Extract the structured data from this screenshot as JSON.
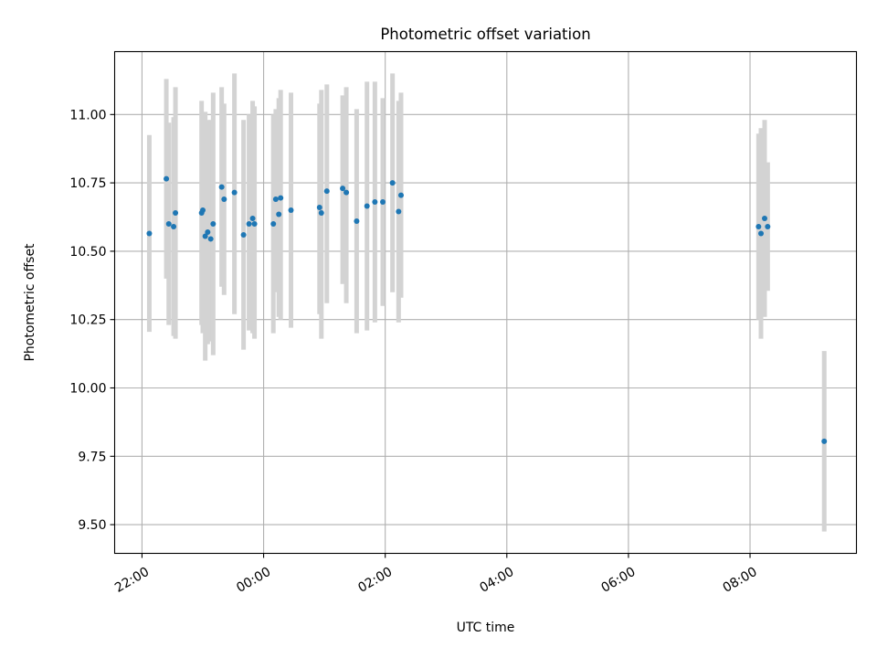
{
  "chart_data": {
    "type": "scatter",
    "title": "Photometric offset variation",
    "xlabel": "UTC time",
    "ylabel": "Photometric offset",
    "x_unit": "hours since 22:00 UTC on the first night",
    "xlim": [
      -0.45,
      11.75
    ],
    "ylim": [
      9.395,
      11.23
    ],
    "x_ticks": [
      {
        "value": 0,
        "label": "22:00"
      },
      {
        "value": 2,
        "label": "00:00"
      },
      {
        "value": 4,
        "label": "02:00"
      },
      {
        "value": 6,
        "label": "04:00"
      },
      {
        "value": 8,
        "label": "06:00"
      },
      {
        "value": 10,
        "label": "08:00"
      }
    ],
    "y_ticks": [
      {
        "value": 9.5,
        "label": "9.50"
      },
      {
        "value": 9.75,
        "label": "9.75"
      },
      {
        "value": 10.0,
        "label": "10.00"
      },
      {
        "value": 10.25,
        "label": "10.25"
      },
      {
        "value": 10.5,
        "label": "10.50"
      },
      {
        "value": 10.75,
        "label": "10.75"
      },
      {
        "value": 11.0,
        "label": "11.00"
      }
    ],
    "grid": true,
    "marker_color": "#1f77b4",
    "errorbar_color": "#d3d3d3",
    "points": [
      {
        "x": 0.12,
        "y": 10.565,
        "lo": 10.205,
        "hi": 10.925
      },
      {
        "x": 0.4,
        "y": 10.765,
        "lo": 10.4,
        "hi": 11.13
      },
      {
        "x": 0.44,
        "y": 10.6,
        "lo": 10.23,
        "hi": 10.97
      },
      {
        "x": 0.52,
        "y": 10.59,
        "lo": 10.19,
        "hi": 10.99
      },
      {
        "x": 0.55,
        "y": 10.64,
        "lo": 10.18,
        "hi": 11.1
      },
      {
        "x": 0.98,
        "y": 10.64,
        "lo": 10.23,
        "hi": 11.05
      },
      {
        "x": 1.0,
        "y": 10.65,
        "lo": 10.2,
        "hi": 11.0
      },
      {
        "x": 1.04,
        "y": 10.555,
        "lo": 10.1,
        "hi": 11.01
      },
      {
        "x": 1.08,
        "y": 10.57,
        "lo": 10.16,
        "hi": 10.98
      },
      {
        "x": 1.13,
        "y": 10.545,
        "lo": 10.17,
        "hi": 10.98
      },
      {
        "x": 1.17,
        "y": 10.6,
        "lo": 10.12,
        "hi": 11.08
      },
      {
        "x": 1.31,
        "y": 10.735,
        "lo": 10.37,
        "hi": 11.1
      },
      {
        "x": 1.35,
        "y": 10.69,
        "lo": 10.34,
        "hi": 11.04
      },
      {
        "x": 1.52,
        "y": 10.715,
        "lo": 10.27,
        "hi": 11.15
      },
      {
        "x": 1.67,
        "y": 10.56,
        "lo": 10.14,
        "hi": 10.98
      },
      {
        "x": 1.76,
        "y": 10.6,
        "lo": 10.21,
        "hi": 11.0
      },
      {
        "x": 1.82,
        "y": 10.62,
        "lo": 10.2,
        "hi": 11.05
      },
      {
        "x": 1.85,
        "y": 10.6,
        "lo": 10.18,
        "hi": 11.03
      },
      {
        "x": 2.16,
        "y": 10.6,
        "lo": 10.2,
        "hi": 11.0
      },
      {
        "x": 2.2,
        "y": 10.69,
        "lo": 10.35,
        "hi": 11.02
      },
      {
        "x": 2.25,
        "y": 10.635,
        "lo": 10.26,
        "hi": 11.06
      },
      {
        "x": 2.28,
        "y": 10.695,
        "lo": 10.25,
        "hi": 11.09
      },
      {
        "x": 2.45,
        "y": 10.65,
        "lo": 10.22,
        "hi": 11.08
      },
      {
        "x": 2.92,
        "y": 10.66,
        "lo": 10.27,
        "hi": 11.04
      },
      {
        "x": 2.95,
        "y": 10.64,
        "lo": 10.18,
        "hi": 11.09
      },
      {
        "x": 3.04,
        "y": 10.72,
        "lo": 10.31,
        "hi": 11.11
      },
      {
        "x": 3.3,
        "y": 10.73,
        "lo": 10.38,
        "hi": 11.07
      },
      {
        "x": 3.36,
        "y": 10.715,
        "lo": 10.31,
        "hi": 11.1
      },
      {
        "x": 3.53,
        "y": 10.61,
        "lo": 10.2,
        "hi": 11.02
      },
      {
        "x": 3.7,
        "y": 10.665,
        "lo": 10.21,
        "hi": 11.12
      },
      {
        "x": 3.83,
        "y": 10.68,
        "lo": 10.24,
        "hi": 11.12
      },
      {
        "x": 3.96,
        "y": 10.68,
        "lo": 10.3,
        "hi": 11.06
      },
      {
        "x": 4.12,
        "y": 10.75,
        "lo": 10.35,
        "hi": 11.15
      },
      {
        "x": 4.22,
        "y": 10.645,
        "lo": 10.24,
        "hi": 11.05
      },
      {
        "x": 4.26,
        "y": 10.705,
        "lo": 10.33,
        "hi": 11.08
      },
      {
        "x": 10.14,
        "y": 10.59,
        "lo": 10.25,
        "hi": 10.93
      },
      {
        "x": 10.18,
        "y": 10.565,
        "lo": 10.18,
        "hi": 10.95
      },
      {
        "x": 10.24,
        "y": 10.62,
        "lo": 10.26,
        "hi": 10.98
      },
      {
        "x": 10.29,
        "y": 10.59,
        "lo": 10.355,
        "hi": 10.825
      },
      {
        "x": 11.22,
        "y": 9.805,
        "lo": 9.475,
        "hi": 10.135
      }
    ]
  }
}
